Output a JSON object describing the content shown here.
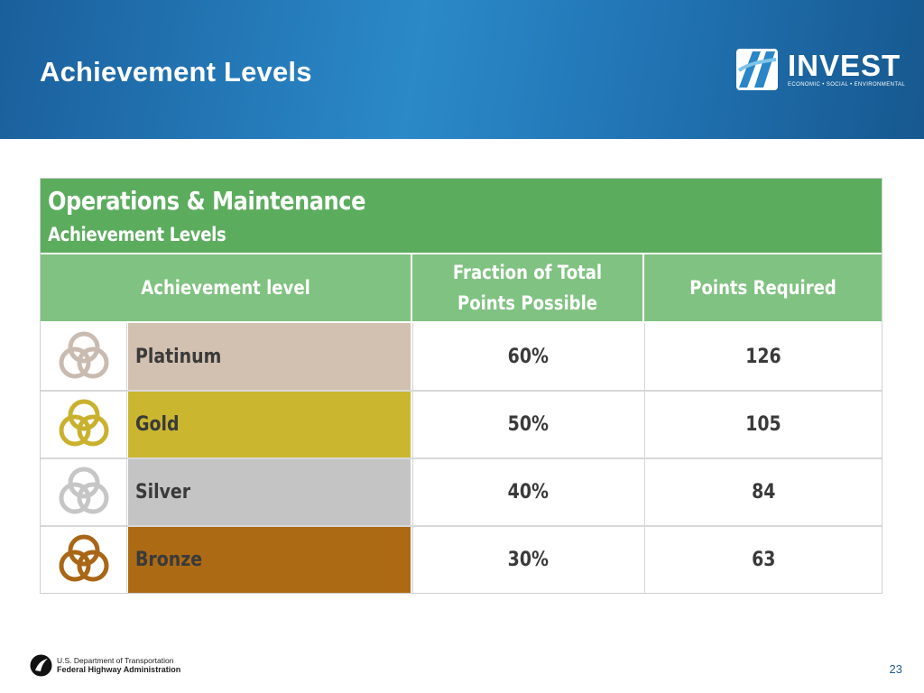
{
  "slide": {
    "title": "Achievement Levels",
    "page_number": "23"
  },
  "logo": {
    "word": "INVEST",
    "tagline": "ECONOMIC • SOCIAL • ENVIRONMENTAL"
  },
  "table": {
    "title": "Operations & Maintenance",
    "subtitle": "Achievement Levels",
    "columns": [
      "Achievement level",
      "Fraction of Total Points Possible",
      "Points Required"
    ],
    "rows": [
      {
        "level": "Platinum",
        "fraction": "60%",
        "points": "126",
        "color": "#d2c0b0",
        "icon_color": "#c9bbb0"
      },
      {
        "level": "Gold",
        "fraction": "50%",
        "points": "105",
        "color": "#cbb630",
        "icon_color": "#c9b12e"
      },
      {
        "level": "Silver",
        "fraction": "40%",
        "points": "84",
        "color": "#c4c4c4",
        "icon_color": "#c6c6c6"
      },
      {
        "level": "Bronze",
        "fraction": "30%",
        "points": "63",
        "color": "#ad6a14",
        "icon_color": "#a96617"
      }
    ]
  },
  "footer": {
    "agency_line1": "U.S. Department of Transportation",
    "agency_line2": "Federal Highway Administration"
  },
  "colors": {
    "header_blue": "#2b89c8",
    "table_header_green": "#5cac5e",
    "column_header_green": "#80c281"
  }
}
